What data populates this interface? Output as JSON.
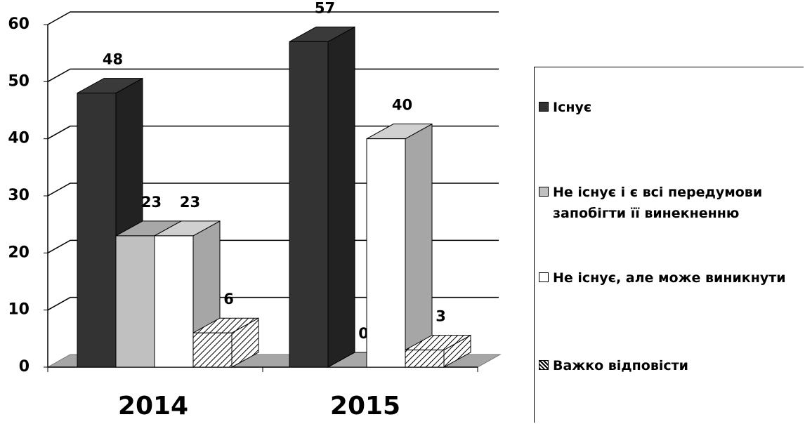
{
  "chart_data": {
    "type": "bar3d",
    "categories": [
      "2014",
      "2015"
    ],
    "series": [
      {
        "name": "Існує",
        "color": "#333333",
        "values": [
          48,
          57
        ]
      },
      {
        "name": "Не існує і є всі передумови запобігти її винекненню",
        "color": "#c0c0c0",
        "values": [
          23,
          0
        ]
      },
      {
        "name": "Не існує, але може виникнути",
        "color": "#ffffff",
        "values": [
          23,
          40
        ]
      },
      {
        "name": "Важко відповісти",
        "color": "hatch",
        "values": [
          6,
          3
        ]
      }
    ],
    "ylim": [
      0,
      60
    ],
    "yticks": [
      0,
      10,
      20,
      30,
      40,
      50,
      60
    ],
    "grid": true,
    "legend": "right"
  }
}
